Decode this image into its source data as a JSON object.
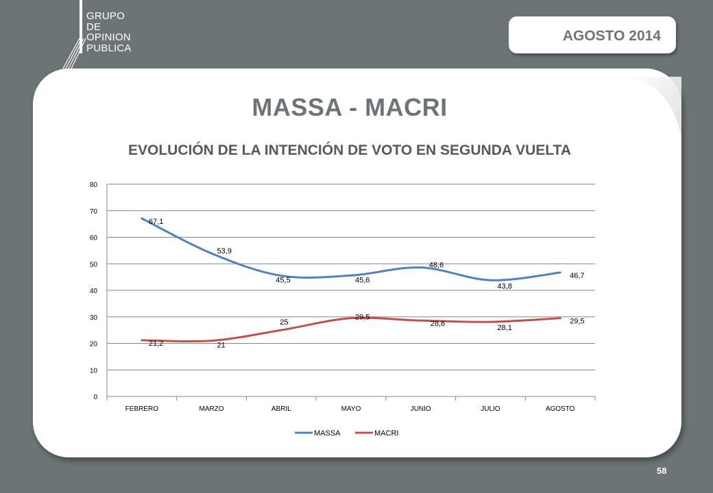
{
  "logo": {
    "lines": [
      "GRUPO",
      "DE",
      "OPINION",
      "PUBLICA"
    ]
  },
  "header": {
    "month_label": "AGOSTO  2014"
  },
  "slide": {
    "title": "MASSA - MACRI",
    "page_number": "58"
  },
  "chart_data": {
    "type": "line",
    "title": "EVOLUCIÓN DE LA  INTENCIÓN DE VOTO EN SEGUNDA VUELTA",
    "categories": [
      "FEBRERO",
      "MARZO",
      "ABRIL",
      "MAYO",
      "JUNIO",
      "JULIO",
      "AGOSTO"
    ],
    "series": [
      {
        "name": "MASSA",
        "color": "#4f81bd",
        "values": [
          67.1,
          53.9,
          45.5,
          45.6,
          48.6,
          43.8,
          46.7
        ],
        "labels": [
          "67,1",
          "53,9",
          "45,5",
          "45,6",
          "48,6",
          "43,8",
          "46,7"
        ]
      },
      {
        "name": "MACRI",
        "color": "#c0504d",
        "values": [
          21.2,
          21,
          25,
          29.5,
          28.6,
          28.1,
          29.5
        ],
        "labels": [
          "21,2",
          "21",
          "25",
          "29,5",
          "28,6",
          "28,1",
          "29,5"
        ]
      }
    ],
    "ylim": [
      0,
      80
    ],
    "yticks": [
      "0",
      "10",
      "20",
      "30",
      "40",
      "50",
      "60",
      "70",
      "80"
    ],
    "grid": true,
    "legend_position": "bottom"
  }
}
